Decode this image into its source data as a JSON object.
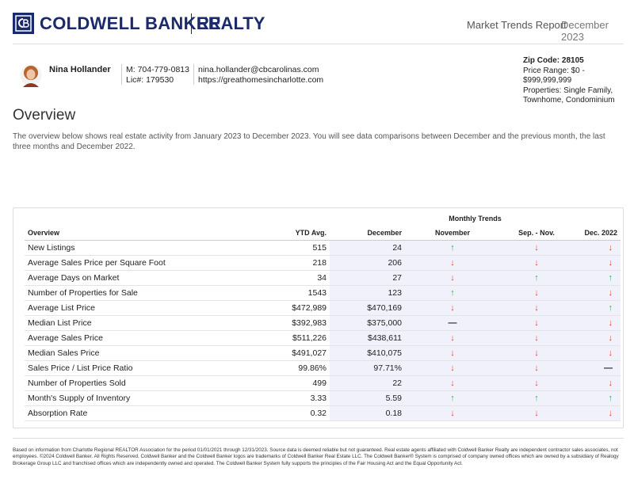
{
  "header": {
    "logo_name": "COLDWELL BANKER",
    "logo_division": "REALTY",
    "report_title": "Market Trends Report",
    "report_date": "December 2023"
  },
  "agent": {
    "name": "Nina Hollander",
    "phone": "M: 704-779-0813",
    "license": "Lic#: 179530",
    "email": "nina.hollander@cbcarolinas.com",
    "website": "https://greathomesincharlotte.com"
  },
  "criteria": {
    "zip": "Zip Code: 28105",
    "price_range": "Price Range: $0 - $999,999,999",
    "properties": "Properties: Single Family, Townhome, Condominium"
  },
  "overview": {
    "title": "Overview",
    "description": "The overview below shows real estate activity from January 2023 to December 2023. You will see data comparisons between December and the previous month, the last three months and December 2022."
  },
  "table": {
    "group_header": "Monthly Trends",
    "columns": [
      "Overview",
      "YTD Avg.",
      "December",
      "November",
      "Sep. - Nov.",
      "Dec. 2022"
    ],
    "arrow_colors": {
      "↑": "#2bb34b",
      "↓": "#e5432b",
      "—": "#222222"
    },
    "rows": [
      [
        "New Listings",
        "515",
        "24",
        "↑",
        "↓",
        "↓"
      ],
      [
        "Average Sales Price per Square Foot",
        "218",
        "206",
        "↓",
        "↓",
        "↓"
      ],
      [
        "Average Days on Market",
        "34",
        "27",
        "↓",
        "↑",
        "↑"
      ],
      [
        "Number of Properties for Sale",
        "1543",
        "123",
        "↑",
        "↓",
        "↓"
      ],
      [
        "Average List Price",
        "$472,989",
        "$470,169",
        "↓",
        "↓",
        "↑"
      ],
      [
        "Median List Price",
        "$392,983",
        "$375,000",
        "—",
        "↓",
        "↓"
      ],
      [
        "Average Sales Price",
        "$511,226",
        "$438,611",
        "↓",
        "↓",
        "↓"
      ],
      [
        "Median Sales Price",
        "$491,027",
        "$410,075",
        "↓",
        "↓",
        "↓"
      ],
      [
        "Sales Price / List Price Ratio",
        "99.86%",
        "97.71%",
        "↓",
        "↓",
        "—"
      ],
      [
        "Number of Properties Sold",
        "499",
        "22",
        "↓",
        "↓",
        "↓"
      ],
      [
        "Month's Supply of Inventory",
        "3.33",
        "5.59",
        "↑",
        "↑",
        "↑"
      ],
      [
        "Absorption Rate",
        "0.32",
        "0.18",
        "↓",
        "↓",
        "↓"
      ]
    ]
  },
  "footer": {
    "disclaimer": "Based on information from Charlotte Regional REALTOR Association for the period 01/01/2021 through 12/31/2023. Source data is deemed reliable but not guaranteed. Real estate agents affiliated with Coldwell Banker Realty are independent contractor sales associates, not employees. ©2024 Coldwell Banker. All Rights Reserved. Coldwell Banker and the Coldwell Banker logos are trademarks of Coldwell Banker Real Estate LLC. The Coldwell Banker® System is comprised of company owned offices which are owned by a subsidiary of Realogy Brokerage Group LLC and franchised offices which are independently owned and operated. The Coldwell Banker System fully supports the principles of the Fair Housing Act and the Equal Opportunity Act."
  }
}
